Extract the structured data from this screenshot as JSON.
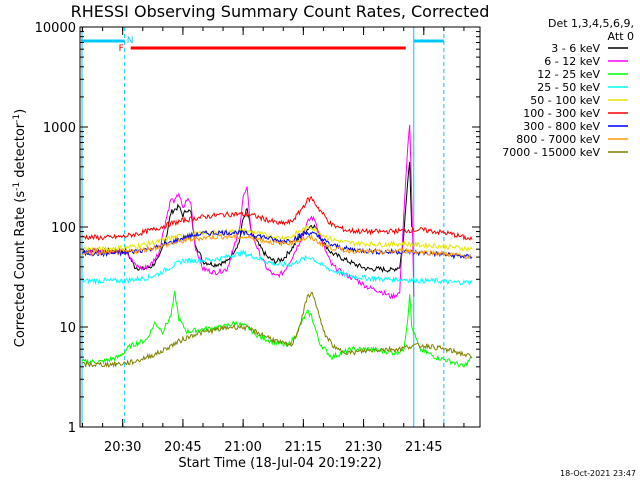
{
  "chart_data": {
    "type": "line",
    "title": "RHESSI Observing Summary Count Rates, Corrected",
    "xlabel": "Start Time (18-Jul-04 20:19:22)",
    "ylabel_main": "Corrected Count Rate (s",
    "ylabel_sup": "-1",
    "ylabel_tail": " detector",
    "ylabel_sup2": "-1",
    "ylabel_end": ")",
    "y_scale": "log",
    "ylim": [
      1,
      10000
    ],
    "xlim": [
      "20:19:22",
      "21:59:00"
    ],
    "x_ticks": [
      "20:30",
      "20:45",
      "21:00",
      "21:15",
      "21:30",
      "21:45"
    ],
    "y_ticks": [
      "1",
      "10",
      "100",
      "1000",
      "10000"
    ],
    "legend_header": [
      "Det 1,3,4,5,6,9,",
      "Att 0"
    ],
    "timestamp": "18-Oct-2021 23:47",
    "flags": [
      {
        "label": "N",
        "color": "#00c8ff"
      },
      {
        "label": "F",
        "color": "#ff0000"
      }
    ],
    "series": [
      {
        "name": "3 - 6 keV",
        "color": "#000000",
        "points": [
          [
            "20:20",
            58
          ],
          [
            "20:25",
            58
          ],
          [
            "20:29",
            57
          ],
          [
            "20:31",
            57
          ],
          [
            "20:33",
            40
          ],
          [
            "20:35",
            38
          ],
          [
            "20:37",
            40
          ],
          [
            "20:39",
            48
          ],
          [
            "20:41",
            85
          ],
          [
            "20:42",
            140
          ],
          [
            "20:43",
            150
          ],
          [
            "20:44",
            160
          ],
          [
            "20:45",
            130
          ],
          [
            "20:46",
            150
          ],
          [
            "20:47",
            140
          ],
          [
            "20:48",
            70
          ],
          [
            "20:50",
            45
          ],
          [
            "20:53",
            42
          ],
          [
            "20:56",
            45
          ],
          [
            "20:59",
            70
          ],
          [
            "21:00",
            120
          ],
          [
            "21:01",
            150
          ],
          [
            "21:02",
            90
          ],
          [
            "21:04",
            65
          ],
          [
            "21:06",
            50
          ],
          [
            "21:08",
            45
          ],
          [
            "21:10",
            48
          ],
          [
            "21:12",
            60
          ],
          [
            "21:14",
            78
          ],
          [
            "21:16",
            95
          ],
          [
            "21:17",
            105
          ],
          [
            "21:18",
            100
          ],
          [
            "21:20",
            70
          ],
          [
            "21:22",
            55
          ],
          [
            "21:25",
            48
          ],
          [
            "21:28",
            42
          ],
          [
            "21:31",
            38
          ],
          [
            "21:34",
            38
          ],
          [
            "21:37",
            37
          ],
          [
            "21:39",
            40
          ],
          [
            "21:40",
            80
          ],
          [
            "21:41",
            300
          ],
          [
            "21:41.5",
            450
          ],
          [
            "21:42",
            100
          ]
        ]
      },
      {
        "name": "6 - 12 keV",
        "color": "#ff00ff",
        "points": [
          [
            "20:20",
            58
          ],
          [
            "20:25",
            58
          ],
          [
            "20:31",
            57
          ],
          [
            "20:33",
            42
          ],
          [
            "20:35",
            38
          ],
          [
            "20:37",
            42
          ],
          [
            "20:39",
            55
          ],
          [
            "20:41",
            130
          ],
          [
            "20:42",
            190
          ],
          [
            "20:43",
            180
          ],
          [
            "20:44",
            220
          ],
          [
            "20:45",
            150
          ],
          [
            "20:46",
            190
          ],
          [
            "20:47",
            175
          ],
          [
            "20:48",
            65
          ],
          [
            "20:50",
            38
          ],
          [
            "20:53",
            35
          ],
          [
            "20:56",
            38
          ],
          [
            "20:59",
            90
          ],
          [
            "21:00",
            200
          ],
          [
            "21:01",
            240
          ],
          [
            "21:02",
            90
          ],
          [
            "21:04",
            55
          ],
          [
            "21:06",
            38
          ],
          [
            "21:08",
            32
          ],
          [
            "21:10",
            35
          ],
          [
            "21:12",
            48
          ],
          [
            "21:14",
            70
          ],
          [
            "21:16",
            110
          ],
          [
            "21:17",
            125
          ],
          [
            "21:18",
            115
          ],
          [
            "21:20",
            65
          ],
          [
            "21:22",
            42
          ],
          [
            "21:25",
            34
          ],
          [
            "21:28",
            30
          ],
          [
            "21:31",
            25
          ],
          [
            "21:34",
            23
          ],
          [
            "21:37",
            20
          ],
          [
            "21:39",
            22
          ],
          [
            "21:40",
            130
          ],
          [
            "21:41",
            600
          ],
          [
            "21:41.5",
            1100
          ],
          [
            "21:42",
            200
          ],
          [
            "21:42.5",
            20
          ]
        ]
      },
      {
        "name": "12 - 25 keV",
        "color": "#00ff00",
        "points": [
          [
            "20:20",
            4.5
          ],
          [
            "20:25",
            4.5
          ],
          [
            "20:29",
            5
          ],
          [
            "20:32",
            6.5
          ],
          [
            "20:36",
            7.5
          ],
          [
            "20:38",
            11
          ],
          [
            "20:40",
            9
          ],
          [
            "20:42",
            13
          ],
          [
            "20:43",
            22
          ],
          [
            "20:44",
            12
          ],
          [
            "20:46",
            9
          ],
          [
            "20:50",
            9.5
          ],
          [
            "20:55",
            10
          ],
          [
            "20:58",
            11
          ],
          [
            "21:01",
            10
          ],
          [
            "21:04",
            8
          ],
          [
            "21:08",
            7
          ],
          [
            "21:11",
            6.5
          ],
          [
            "21:13",
            8
          ],
          [
            "21:15",
            12
          ],
          [
            "21:16",
            14
          ],
          [
            "21:17",
            13
          ],
          [
            "21:19",
            7
          ],
          [
            "21:22",
            5
          ],
          [
            "21:27",
            6
          ],
          [
            "21:32",
            6
          ],
          [
            "21:38",
            5.5
          ],
          [
            "21:40",
            6
          ],
          [
            "21:41",
            12
          ],
          [
            "21:41.5",
            22
          ],
          [
            "21:42",
            10
          ],
          [
            "21:44",
            6
          ],
          [
            "21:48",
            5
          ],
          [
            "21:52",
            4.5
          ],
          [
            "21:55",
            4
          ],
          [
            "21:57",
            5
          ]
        ]
      },
      {
        "name": "25 - 50 keV",
        "color": "#00ffff",
        "points": [
          [
            "20:20",
            29
          ],
          [
            "20:25",
            29
          ],
          [
            "20:30",
            29
          ],
          [
            "20:33",
            30
          ],
          [
            "20:36",
            31
          ],
          [
            "20:39",
            34
          ],
          [
            "20:42",
            40
          ],
          [
            "20:45",
            46
          ],
          [
            "20:48",
            46
          ],
          [
            "20:51",
            47
          ],
          [
            "20:54",
            48
          ],
          [
            "20:57",
            52
          ],
          [
            "21:00",
            55
          ],
          [
            "21:03",
            50
          ],
          [
            "21:06",
            45
          ],
          [
            "21:09",
            42
          ],
          [
            "21:12",
            42
          ],
          [
            "21:15",
            48
          ],
          [
            "21:17",
            50
          ],
          [
            "21:19",
            43
          ],
          [
            "21:22",
            37
          ],
          [
            "21:26",
            33
          ],
          [
            "21:30",
            31
          ],
          [
            "21:35",
            30
          ],
          [
            "21:40",
            30
          ],
          [
            "21:44",
            29
          ],
          [
            "21:48",
            29
          ],
          [
            "21:52",
            28
          ],
          [
            "21:57",
            28
          ]
        ]
      },
      {
        "name": "50 - 100 keV",
        "color": "#e6e600",
        "points": [
          [
            "20:20",
            60
          ],
          [
            "20:25",
            60
          ],
          [
            "20:30",
            62
          ],
          [
            "20:34",
            65
          ],
          [
            "20:38",
            70
          ],
          [
            "20:42",
            78
          ],
          [
            "20:45",
            82
          ],
          [
            "20:48",
            85
          ],
          [
            "20:51",
            87
          ],
          [
            "20:54",
            88
          ],
          [
            "20:57",
            90
          ],
          [
            "21:00",
            92
          ],
          [
            "21:03",
            88
          ],
          [
            "21:06",
            82
          ],
          [
            "21:09",
            78
          ],
          [
            "21:12",
            80
          ],
          [
            "21:15",
            95
          ],
          [
            "21:17",
            100
          ],
          [
            "21:19",
            88
          ],
          [
            "21:22",
            75
          ],
          [
            "21:26",
            70
          ],
          [
            "21:30",
            68
          ],
          [
            "21:35",
            67
          ],
          [
            "21:40",
            68
          ],
          [
            "21:44",
            66
          ],
          [
            "21:48",
            65
          ],
          [
            "21:52",
            63
          ],
          [
            "21:57",
            60
          ]
        ]
      },
      {
        "name": "100 - 300 keV",
        "color": "#ff0000",
        "points": [
          [
            "20:20",
            80
          ],
          [
            "20:25",
            78
          ],
          [
            "20:30",
            80
          ],
          [
            "20:34",
            86
          ],
          [
            "20:38",
            95
          ],
          [
            "20:42",
            108
          ],
          [
            "20:46",
            118
          ],
          [
            "20:50",
            126
          ],
          [
            "20:54",
            132
          ],
          [
            "20:58",
            135
          ],
          [
            "21:02",
            132
          ],
          [
            "21:06",
            118
          ],
          [
            "21:09",
            108
          ],
          [
            "21:12",
            112
          ],
          [
            "21:14",
            140
          ],
          [
            "21:16",
            185
          ],
          [
            "21:17",
            195
          ],
          [
            "21:19",
            150
          ],
          [
            "21:22",
            105
          ],
          [
            "21:26",
            92
          ],
          [
            "21:30",
            90
          ],
          [
            "21:35",
            90
          ],
          [
            "21:40",
            92
          ],
          [
            "21:44",
            94
          ],
          [
            "21:48",
            90
          ],
          [
            "21:52",
            85
          ],
          [
            "21:57",
            75
          ]
        ]
      },
      {
        "name": "300 - 800 keV",
        "color": "#0000ff",
        "points": [
          [
            "20:20",
            55
          ],
          [
            "20:25",
            54
          ],
          [
            "20:30",
            55
          ],
          [
            "20:34",
            58
          ],
          [
            "20:38",
            62
          ],
          [
            "20:42",
            70
          ],
          [
            "20:46",
            80
          ],
          [
            "20:50",
            86
          ],
          [
            "20:54",
            88
          ],
          [
            "20:58",
            88
          ],
          [
            "21:02",
            85
          ],
          [
            "21:06",
            78
          ],
          [
            "21:09",
            72
          ],
          [
            "21:12",
            74
          ],
          [
            "21:15",
            85
          ],
          [
            "21:17",
            88
          ],
          [
            "21:19",
            78
          ],
          [
            "21:22",
            66
          ],
          [
            "21:26",
            60
          ],
          [
            "21:30",
            58
          ],
          [
            "21:35",
            56
          ],
          [
            "21:40",
            57
          ],
          [
            "21:44",
            55
          ],
          [
            "21:48",
            54
          ],
          [
            "21:52",
            52
          ],
          [
            "21:57",
            50
          ]
        ]
      },
      {
        "name": "800 - 7000 keV",
        "color": "#ff9900",
        "points": [
          [
            "20:20",
            55
          ],
          [
            "20:25",
            55
          ],
          [
            "20:30",
            56
          ],
          [
            "20:34",
            58
          ],
          [
            "20:38",
            62
          ],
          [
            "20:42",
            68
          ],
          [
            "20:46",
            74
          ],
          [
            "20:50",
            78
          ],
          [
            "20:54",
            80
          ],
          [
            "20:58",
            80
          ],
          [
            "21:02",
            78
          ],
          [
            "21:06",
            72
          ],
          [
            "21:09",
            68
          ],
          [
            "21:12",
            70
          ],
          [
            "21:15",
            76
          ],
          [
            "21:17",
            78
          ],
          [
            "21:19",
            70
          ],
          [
            "21:22",
            62
          ],
          [
            "21:26",
            58
          ],
          [
            "21:30",
            57
          ],
          [
            "21:35",
            56
          ],
          [
            "21:40",
            58
          ],
          [
            "21:44",
            56
          ],
          [
            "21:48",
            55
          ],
          [
            "21:52",
            53
          ],
          [
            "21:57",
            50
          ]
        ]
      },
      {
        "name": "7000 - 15000 keV",
        "color": "#808000",
        "points": [
          [
            "20:20",
            4.2
          ],
          [
            "20:25",
            4.2
          ],
          [
            "20:30",
            4.3
          ],
          [
            "20:33",
            4.5
          ],
          [
            "20:36",
            5
          ],
          [
            "20:39",
            5.5
          ],
          [
            "20:42",
            6.5
          ],
          [
            "20:45",
            7.5
          ],
          [
            "20:48",
            8.5
          ],
          [
            "20:51",
            9
          ],
          [
            "20:54",
            9.5
          ],
          [
            "20:57",
            10
          ],
          [
            "21:00",
            10
          ],
          [
            "21:03",
            9
          ],
          [
            "21:06",
            8
          ],
          [
            "21:09",
            7
          ],
          [
            "21:12",
            6.5
          ],
          [
            "21:14",
            10
          ],
          [
            "21:16",
            20
          ],
          [
            "21:17",
            22
          ],
          [
            "21:18",
            18
          ],
          [
            "21:20",
            9
          ],
          [
            "21:23",
            6
          ],
          [
            "21:27",
            5.5
          ],
          [
            "21:31",
            5.8
          ],
          [
            "21:35",
            6
          ],
          [
            "21:39",
            6
          ],
          [
            "21:42",
            6.5
          ],
          [
            "21:46",
            6.5
          ],
          [
            "21:50",
            6
          ],
          [
            "21:54",
            5.5
          ],
          [
            "21:57",
            5
          ]
        ]
      }
    ]
  }
}
